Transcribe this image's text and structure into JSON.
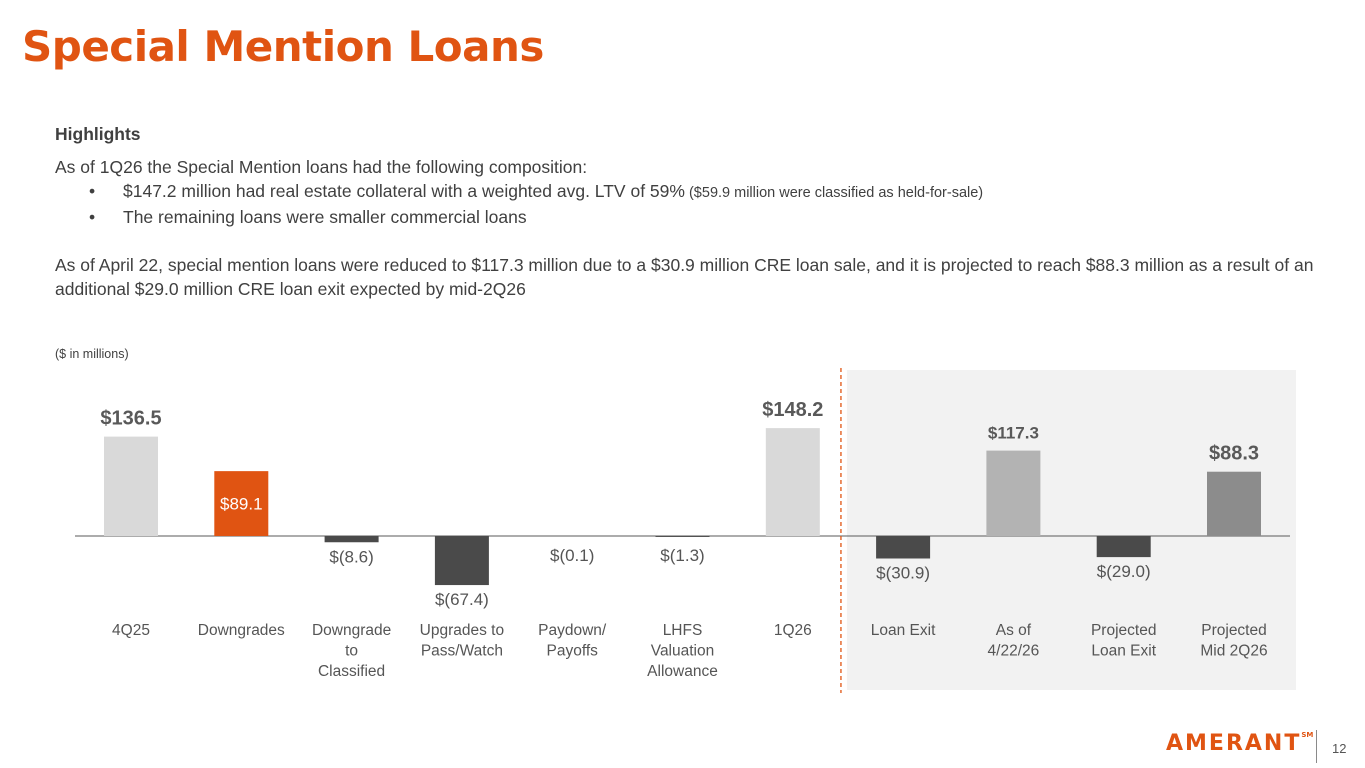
{
  "slide": {
    "title": "Special Mention Loans",
    "page_number": "12",
    "logo_text": "AMERANT",
    "logo_mark": "SM"
  },
  "highlights": {
    "heading": "Highlights",
    "intro": "As of 1Q26 the Special Mention loans had the following composition:",
    "bullets": [
      {
        "main": "$147.2 million had real estate collateral with a weighted avg. LTV of 59%",
        "note": " ($59.9 million were classified as held-for-sale)"
      },
      {
        "main": "The remaining loans were smaller commercial loans",
        "note": ""
      }
    ],
    "paragraph": "As of April 22, special mention loans were reduced to $117.3 million due to a $30.9 million CRE loan sale, and it is projected to reach $88.3 million as a result of an additional $29.0 million CRE loan exit expected by mid-2Q26"
  },
  "chart_data": {
    "type": "bar",
    "units_label": "($ in millions)",
    "categories": [
      "4Q25",
      "Downgrades",
      "Downgrade to Classified",
      "Upgrades to Pass/Watch",
      "Paydown/ Payoffs",
      "LHFS Valuation Allowance",
      "1Q26",
      "Loan Exit",
      "As of 4/22/26",
      "Projected Loan Exit",
      "Projected Mid 2Q26"
    ],
    "values": [
      136.5,
      89.1,
      -8.6,
      -67.4,
      -0.1,
      -1.3,
      148.2,
      -30.9,
      117.3,
      -29.0,
      88.3
    ],
    "labels": [
      "$136.5",
      "$89.1",
      "$(8.6)",
      "$(67.4)",
      "$(0.1)",
      "$(1.3)",
      "$148.2",
      "$(30.9)",
      "$117.3",
      "$(29.0)",
      "$88.3"
    ],
    "colors": [
      "#d9d9d9",
      "#e05412",
      "#4a4a4a",
      "#4a4a4a",
      "#4a4a4a",
      "#4a4a4a",
      "#d9d9d9",
      "#4a4a4a",
      "#b3b3b3",
      "#4a4a4a",
      "#8c8c8c"
    ],
    "projected_from_index": 7,
    "projected_band_color": "#f2f2f2",
    "divider_color": "#e05412",
    "grid": false,
    "legend": "none"
  }
}
